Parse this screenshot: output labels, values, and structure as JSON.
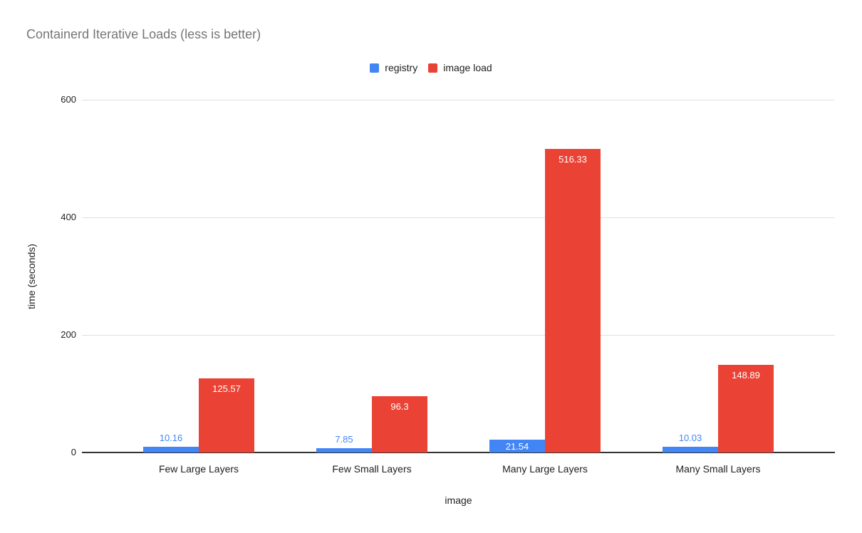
{
  "chart_data": {
    "type": "bar",
    "title": "Containerd Iterative Loads (less is better)",
    "categories": [
      "Few Large Layers",
      "Few Small Layers",
      "Many Large Layers",
      "Many Small Layers"
    ],
    "series": [
      {
        "name": "registry",
        "color": "#4285F4",
        "values": [
          10.16,
          7.85,
          21.54,
          10.03
        ]
      },
      {
        "name": "image load",
        "color": "#EA4335",
        "values": [
          125.57,
          96.3,
          516.33,
          148.89
        ]
      }
    ],
    "xlabel": "image",
    "ylabel": "time (seconds)",
    "ylim": [
      0,
      600
    ],
    "yticks": [
      0,
      200,
      400,
      600
    ],
    "grid": true,
    "legend_position": "top",
    "data_labels": true
  },
  "colors": {
    "title_text": "#757575",
    "axis_text": "#212121",
    "gridline": "#e0e0e0",
    "baseline": "#333333",
    "inside_label": "#ffffff",
    "background": "#ffffff"
  }
}
